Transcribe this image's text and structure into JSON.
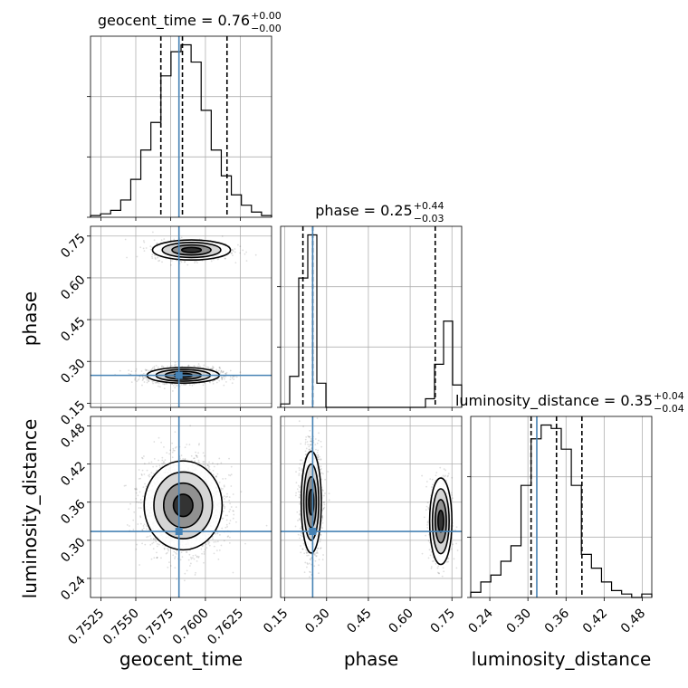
{
  "chart_data": {
    "type": "corner",
    "parameters": [
      "geocent_time",
      "phase",
      "luminosity_distance"
    ],
    "axis_labels": [
      "geocent_time",
      "phase",
      "luminosity_distance"
    ],
    "truths": [
      0.7581,
      0.25,
      0.314
    ],
    "ranges": [
      [
        0.75175,
        0.76475
      ],
      [
        0.135,
        0.785
      ],
      [
        0.21,
        0.495
      ]
    ],
    "ticks": [
      [
        "0.7525",
        "0.7550",
        "0.7575",
        "0.7600",
        "0.7625"
      ],
      [
        "0.15",
        "0.30",
        "0.45",
        "0.60",
        "0.75"
      ],
      [
        "0.24",
        "0.30",
        "0.36",
        "0.42",
        "0.48"
      ]
    ],
    "tick_values": [
      [
        0.7525,
        0.755,
        0.7575,
        0.76,
        0.7625
      ],
      [
        0.15,
        0.3,
        0.45,
        0.6,
        0.75
      ],
      [
        0.24,
        0.3,
        0.36,
        0.42,
        0.48
      ]
    ],
    "titles": [
      {
        "prefix": "geocent_time = 0.76",
        "sup": "+0.00",
        "sub": "−0.00"
      },
      {
        "prefix": "phase = 0.25",
        "sup": "+0.44",
        "sub": "−0.03"
      },
      {
        "prefix": "luminosity_distance = 0.35",
        "sup": "+0.04",
        "sub": "−0.04"
      }
    ],
    "quantiles": [
      [
        0.7568,
        0.75835,
        0.76155
      ],
      [
        0.215,
        0.25,
        0.69
      ],
      [
        0.305,
        0.345,
        0.385
      ]
    ],
    "histograms": [
      {
        "edges_range": [
          0.75175,
          0.76475
        ],
        "counts": [
          1,
          2,
          4,
          10,
          22,
          39,
          55,
          82,
          96,
          100,
          90,
          62,
          39,
          24,
          13,
          7,
          3,
          1
        ]
      },
      {
        "edges_range": [
          0.135,
          0.785
        ],
        "counts": [
          2,
          18,
          75,
          100,
          14,
          0,
          0,
          0,
          0,
          0,
          0,
          0,
          0,
          0,
          0,
          0,
          5,
          25,
          50,
          13
        ]
      },
      {
        "edges_range": [
          0.21,
          0.495
        ],
        "counts": [
          3,
          9,
          13,
          21,
          30,
          65,
          92,
          100,
          98,
          86,
          65,
          25,
          17,
          9,
          4,
          2,
          0,
          2
        ]
      }
    ],
    "grid": true,
    "color_truth": "#4682b4",
    "color_contour": "#000000"
  }
}
